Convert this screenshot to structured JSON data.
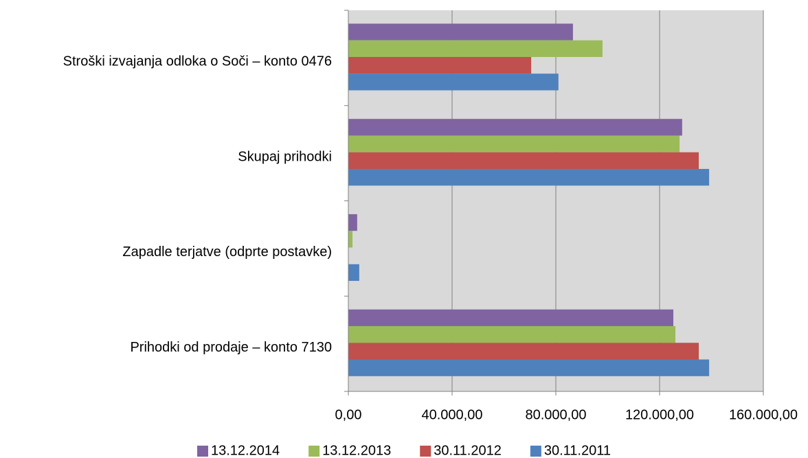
{
  "chart_data": {
    "type": "barh",
    "categories": [
      "Stroški izvajanja odloka o Soči – konto 0476",
      "Skupaj prihodki",
      "Zapadle terjatve (odprte postavke)",
      "Prihodki od prodaje – konto 7130"
    ],
    "series": [
      {
        "name": "13.12.2014",
        "color": "#8064a2",
        "values": [
          86600,
          128700,
          3400,
          125300
        ]
      },
      {
        "name": "13.12.2013",
        "color": "#9bbb59",
        "values": [
          98000,
          127700,
          1600,
          126100
        ]
      },
      {
        "name": "30.11.2012",
        "color": "#c0504d",
        "values": [
          70500,
          135100,
          0,
          135100
        ]
      },
      {
        "name": "30.11.2011",
        "color": "#4f81bd",
        "values": [
          81000,
          139100,
          4200,
          139100
        ]
      }
    ],
    "xlim": [
      0,
      160000
    ],
    "xticks": [
      {
        "value": 0,
        "label": "0,00"
      },
      {
        "value": 40000,
        "label": "40.000,00"
      },
      {
        "value": 80000,
        "label": "80.000,00"
      },
      {
        "value": 120000,
        "label": "120.000,00"
      },
      {
        "value": 160000,
        "label": "160.000,00"
      }
    ],
    "grid": true,
    "legend": "bottom"
  }
}
